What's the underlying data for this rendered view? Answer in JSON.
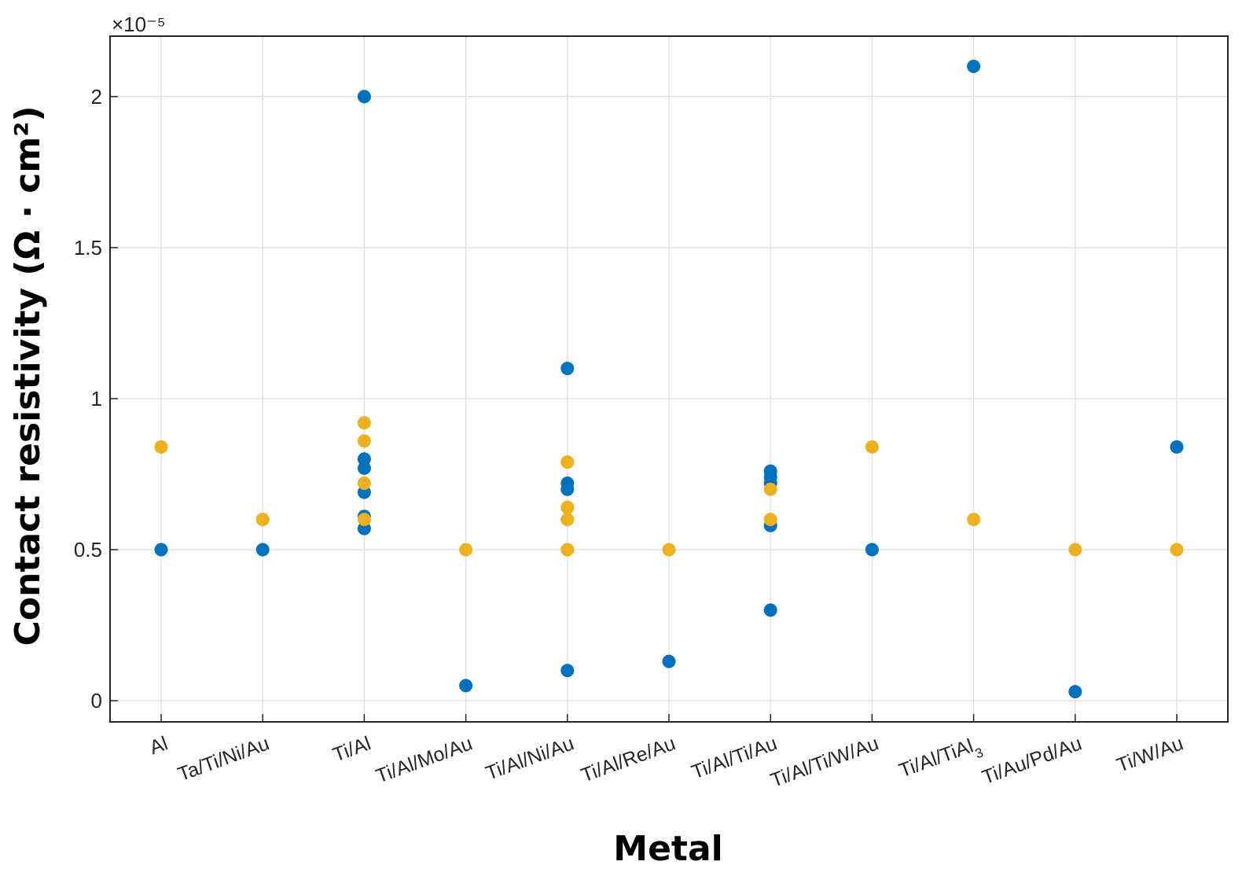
{
  "chart_data": {
    "type": "scatter",
    "xlabel": "Metal",
    "ylabel": "Contact resistivity (Ω · cm²)",
    "y_exponent_label": "×10⁻⁵",
    "categories": [
      "Al",
      "Ta/Ti/Ni/Au",
      "Ti/Al",
      "Ti/Al/Mo/Au",
      "Ti/Al/Ni/Au",
      "Ti/Al/Re/Au",
      "Ti/Al/Ti/Au",
      "Ti/Al/Ti/W/Au",
      "Ti/Al/TiAl3",
      "Ti/Au/Pd/Au",
      "Ti/W/Au"
    ],
    "ylim": [
      -0.07,
      2.2
    ],
    "yticks": [
      0,
      0.5,
      1,
      1.5,
      2
    ],
    "ytick_labels": [
      "0",
      "0.5",
      "1",
      "1.5",
      "2"
    ],
    "grid": true,
    "series": [
      {
        "color": "#0072bd",
        "points": [
          {
            "x": "Al",
            "y": 0.5
          },
          {
            "x": "Ta/Ti/Ni/Au",
            "y": 0.5
          },
          {
            "x": "Ti/Al",
            "y": 2.0
          },
          {
            "x": "Ti/Al",
            "y": 0.8
          },
          {
            "x": "Ti/Al",
            "y": 0.77
          },
          {
            "x": "Ti/Al",
            "y": 0.69
          },
          {
            "x": "Ti/Al",
            "y": 0.61
          },
          {
            "x": "Ti/Al",
            "y": 0.57
          },
          {
            "x": "Ti/Al/Mo/Au",
            "y": 0.05
          },
          {
            "x": "Ti/Al/Ni/Au",
            "y": 1.1
          },
          {
            "x": "Ti/Al/Ni/Au",
            "y": 0.72
          },
          {
            "x": "Ti/Al/Ni/Au",
            "y": 0.7
          },
          {
            "x": "Ti/Al/Ni/Au",
            "y": 0.1
          },
          {
            "x": "Ti/Al/Re/Au",
            "y": 0.13
          },
          {
            "x": "Ti/Al/Ti/Au",
            "y": 0.76
          },
          {
            "x": "Ti/Al/Ti/Au",
            "y": 0.74
          },
          {
            "x": "Ti/Al/Ti/Au",
            "y": 0.72
          },
          {
            "x": "Ti/Al/Ti/Au",
            "y": 0.58
          },
          {
            "x": "Ti/Al/Ti/Au",
            "y": 0.3
          },
          {
            "x": "Ti/Al/Ti/W/Au",
            "y": 0.5
          },
          {
            "x": "Ti/Al/TiAl3",
            "y": 2.1
          },
          {
            "x": "Ti/Au/Pd/Au",
            "y": 0.03
          },
          {
            "x": "Ti/W/Au",
            "y": 0.84
          }
        ]
      },
      {
        "color": "#edb120",
        "points": [
          {
            "x": "Al",
            "y": 0.84
          },
          {
            "x": "Ta/Ti/Ni/Au",
            "y": 0.6
          },
          {
            "x": "Ti/Al",
            "y": 0.92
          },
          {
            "x": "Ti/Al",
            "y": 0.86
          },
          {
            "x": "Ti/Al",
            "y": 0.72
          },
          {
            "x": "Ti/Al",
            "y": 0.6
          },
          {
            "x": "Ti/Al/Mo/Au",
            "y": 0.5
          },
          {
            "x": "Ti/Al/Ni/Au",
            "y": 0.79
          },
          {
            "x": "Ti/Al/Ni/Au",
            "y": 0.64
          },
          {
            "x": "Ti/Al/Ni/Au",
            "y": 0.6
          },
          {
            "x": "Ti/Al/Ni/Au",
            "y": 0.5
          },
          {
            "x": "Ti/Al/Re/Au",
            "y": 0.5
          },
          {
            "x": "Ti/Al/Ti/Au",
            "y": 0.7
          },
          {
            "x": "Ti/Al/Ti/Au",
            "y": 0.6
          },
          {
            "x": "Ti/Al/Ti/W/Au",
            "y": 0.84
          },
          {
            "x": "Ti/Al/TiAl3",
            "y": 0.6
          },
          {
            "x": "Ti/Au/Pd/Au",
            "y": 0.5
          },
          {
            "x": "Ti/W/Au",
            "y": 0.5
          }
        ]
      }
    ]
  }
}
